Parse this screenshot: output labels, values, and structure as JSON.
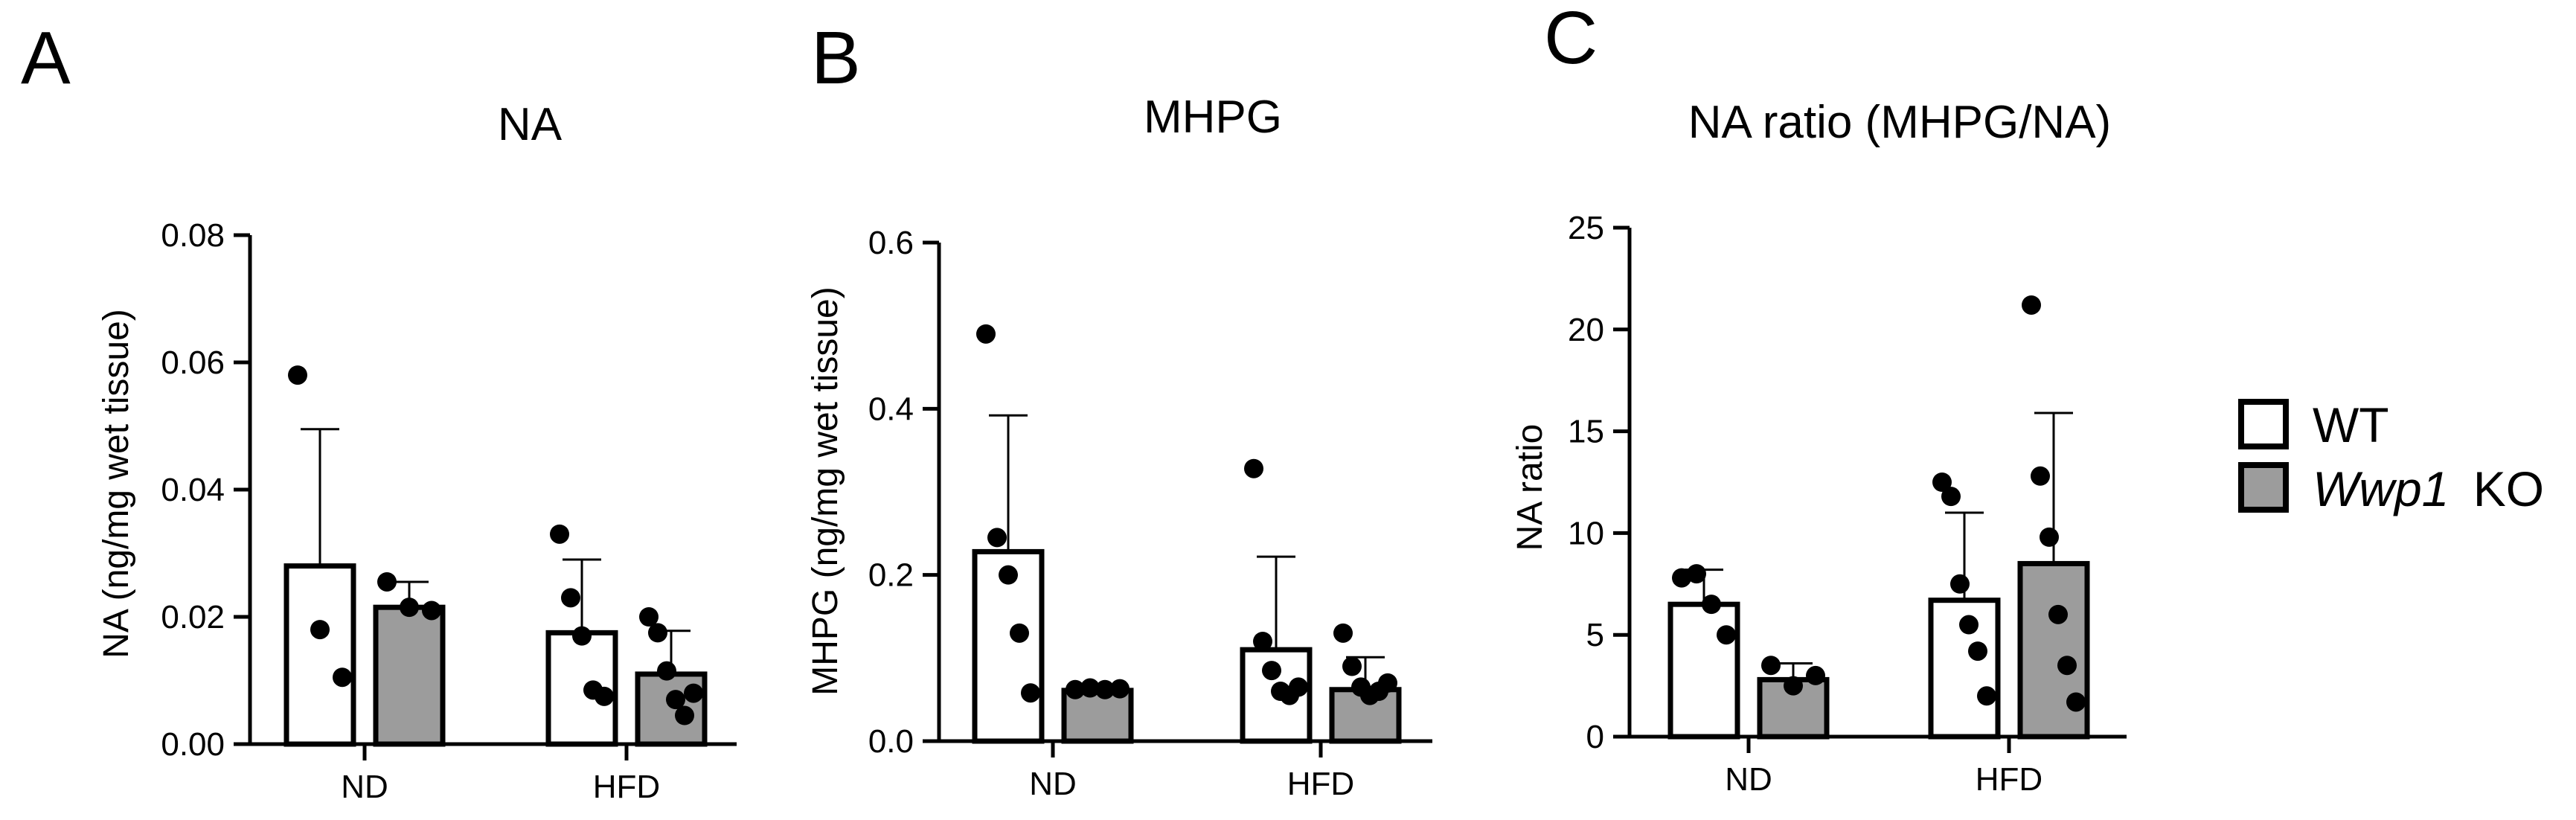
{
  "chart_data": [
    {
      "type": "bar",
      "panel": "A",
      "title": "NA",
      "ylabel": "NA (ng/mg wet tissue)",
      "xlabel": "",
      "ylim": [
        0,
        0.08
      ],
      "yticks": [
        "0.00",
        "0.02",
        "0.04",
        "0.06",
        "0.08"
      ],
      "categories": [
        "ND",
        "HFD"
      ],
      "series": [
        {
          "name": "WT",
          "values": [
            0.028,
            0.0175
          ],
          "sd_upper": [
            0.0495,
            0.029
          ],
          "points": [
            [
              0.058,
              0.018,
              0.0105
            ],
            [
              0.033,
              0.023,
              0.017,
              0.0085,
              0.0075
            ]
          ]
        },
        {
          "name": "Wwp1 KO",
          "values": [
            0.0215,
            0.011
          ],
          "sd_upper": [
            0.0255,
            0.0178
          ],
          "points": [
            [
              0.0255,
              0.0215,
              0.021
            ],
            [
              0.02,
              0.0175,
              0.0115,
              0.007,
              0.0045,
              0.008
            ]
          ]
        }
      ]
    },
    {
      "type": "bar",
      "panel": "B",
      "title": "MHPG",
      "ylabel": "MHPG (ng/mg wet tissue)",
      "xlabel": "",
      "ylim": [
        0,
        0.6
      ],
      "yticks": [
        "0.0",
        "0.2",
        "0.4",
        "0.6"
      ],
      "categories": [
        "ND",
        "HFD"
      ],
      "series": [
        {
          "name": "WT",
          "values": [
            0.228,
            0.11
          ],
          "sd_upper": [
            0.392,
            0.222
          ],
          "points": [
            [
              0.49,
              0.245,
              0.2,
              0.13,
              0.058
            ],
            [
              0.328,
              0.12,
              0.085,
              0.06,
              0.055,
              0.065
            ]
          ]
        },
        {
          "name": "Wwp1 KO",
          "values": [
            0.061,
            0.062
          ],
          "sd_upper": [
            0.066,
            0.101
          ],
          "points": [
            [
              0.062,
              0.064,
              0.062,
              0.063
            ],
            [
              0.13,
              0.09,
              0.065,
              0.055,
              0.06,
              0.07
            ]
          ]
        }
      ]
    },
    {
      "type": "bar",
      "panel": "C",
      "title": "NA ratio (MHPG/NA)",
      "ylabel": "NA ratio",
      "xlabel": "",
      "ylim": [
        0,
        25
      ],
      "yticks": [
        "0",
        "5",
        "10",
        "15",
        "20",
        "25"
      ],
      "categories": [
        "ND",
        "HFD"
      ],
      "series": [
        {
          "name": "WT",
          "values": [
            6.5,
            6.7
          ],
          "sd_upper": [
            8.2,
            11.0
          ],
          "points": [
            [
              7.8,
              8.0,
              6.5,
              5.0
            ],
            [
              12.5,
              11.8,
              7.5,
              5.5,
              4.2,
              2.0
            ]
          ]
        },
        {
          "name": "Wwp1 KO",
          "values": [
            2.8,
            8.5
          ],
          "sd_upper": [
            3.6,
            15.9
          ],
          "points": [
            [
              3.5,
              2.5,
              3.0
            ],
            [
              21.2,
              12.8,
              9.8,
              6.0,
              3.5,
              1.7
            ]
          ]
        }
      ]
    }
  ],
  "legend": {
    "placement": "right",
    "items": [
      {
        "label": "WT",
        "italic_part": "",
        "color": "#ffffff"
      },
      {
        "label": "KO",
        "italic_part": "Wwp1",
        "color": "#9c9c9c"
      }
    ]
  },
  "colors": {
    "wt_fill": "#ffffff",
    "ko_fill": "#9c9c9c",
    "ink": "#000000"
  }
}
